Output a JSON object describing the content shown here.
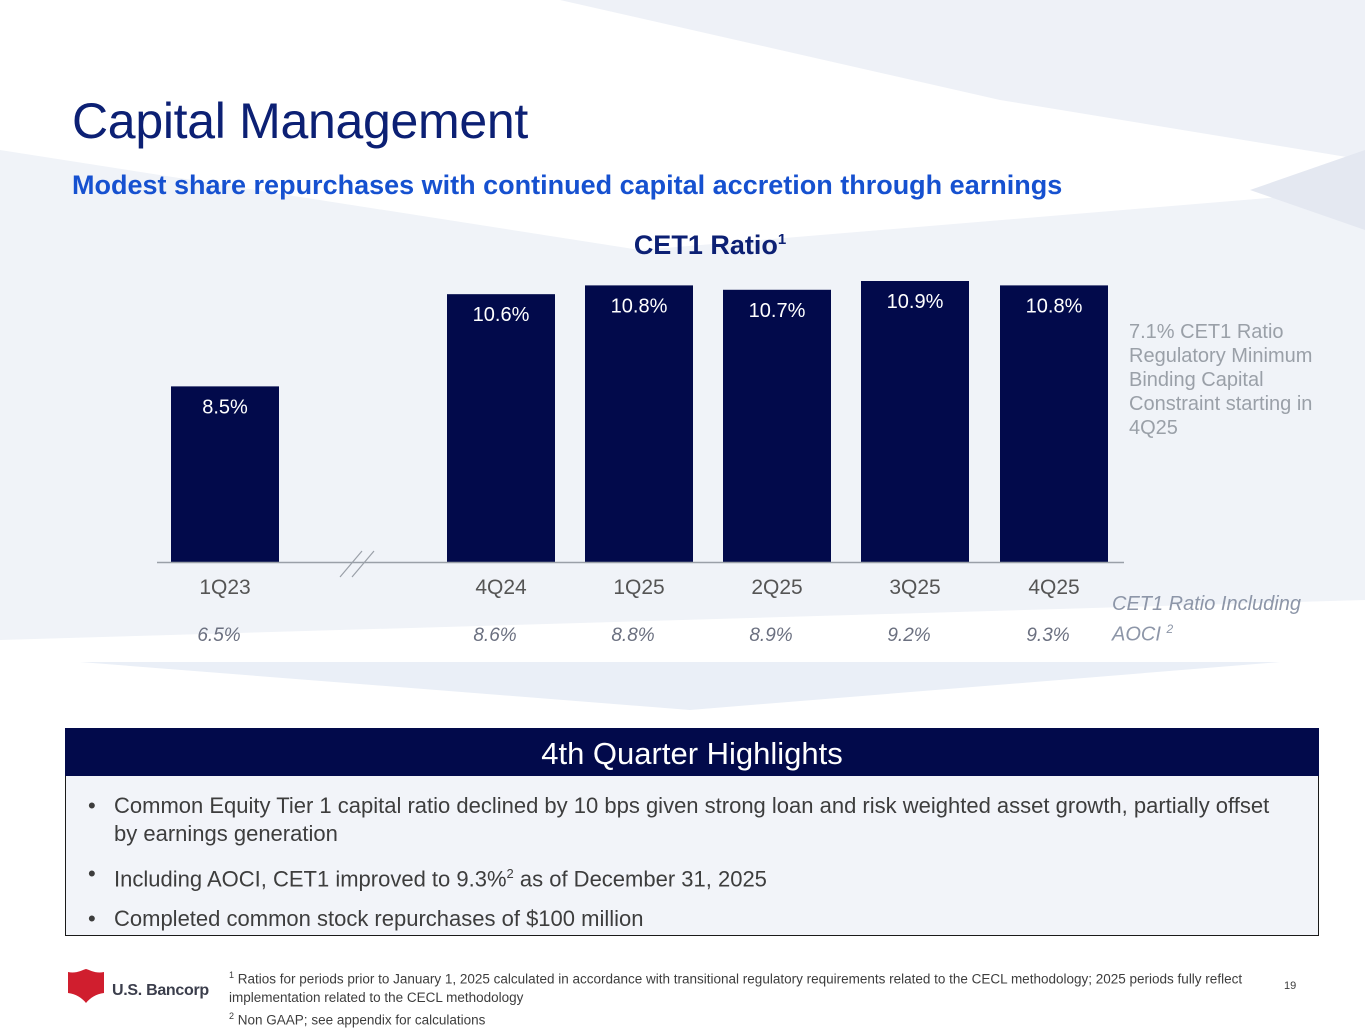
{
  "slide": {
    "title": "Capital Management",
    "subtitle": "Modest share repurchases with continued capital accretion through earnings",
    "page_number": "19"
  },
  "chart_data": {
    "type": "bar",
    "title": "CET1 Ratio",
    "title_footnote": "1",
    "categories": [
      "1Q23",
      "4Q24",
      "1Q25",
      "2Q25",
      "3Q25",
      "4Q25"
    ],
    "series": [
      {
        "name": "CET1 Ratio",
        "values": [
          8.5,
          10.6,
          10.8,
          10.7,
          10.9,
          10.8
        ],
        "labels": [
          "8.5%",
          "10.6%",
          "10.8%",
          "10.7%",
          "10.9%",
          "10.8%"
        ]
      },
      {
        "name": "CET1 Ratio Including AOCI",
        "values": [
          6.5,
          8.6,
          8.8,
          8.9,
          9.2,
          9.3
        ],
        "labels": [
          "6.5%",
          "8.6%",
          "8.8%",
          "8.9%",
          "9.2%",
          "9.3%"
        ]
      }
    ],
    "axis_break_after": "1Q23",
    "legend": "right",
    "grid": false,
    "colors": {
      "bar": "#020a4b",
      "bar_label": "#ffffff",
      "axis": "#9aa0a8",
      "category_label": "#555555",
      "aoci_label": "#6b7080"
    }
  },
  "annotations": {
    "regulatory_note": "7.1% CET1 Ratio Regulatory Minimum Binding Capital Constraint starting in 4Q25",
    "aoci_label": "CET1 Ratio Including AOCI",
    "aoci_footnote": "2"
  },
  "highlights": {
    "header": "4th Quarter Highlights",
    "items": [
      {
        "text": "Common Equity Tier 1 capital ratio declined by 10 bps given strong loan and risk weighted asset growth, partially offset by earnings generation"
      },
      {
        "text_before": "Including AOCI, CET1 improved to 9.3%",
        "footnote": "2",
        "text_after": " as of December 31, 2025"
      },
      {
        "text": "Completed common stock repurchases of $100 million"
      }
    ]
  },
  "footnotes": {
    "note1_marker": "1",
    "note1": "Ratios for periods prior to January 1, 2025 calculated in accordance with transitional regulatory requirements related to the CECL methodology; 2025 periods fully reflect implementation related to the CECL methodology",
    "note2_marker": "2",
    "note2": "Non GAAP; see appendix for calculations"
  },
  "logo": {
    "text": "U.S. Bancorp",
    "icon": "shield-logo-icon",
    "color": "#d01e2e"
  },
  "theme": {
    "title_color": "#0c2074",
    "subtitle_color": "#1651d0",
    "highlight_header_bg": "#020a4b"
  }
}
